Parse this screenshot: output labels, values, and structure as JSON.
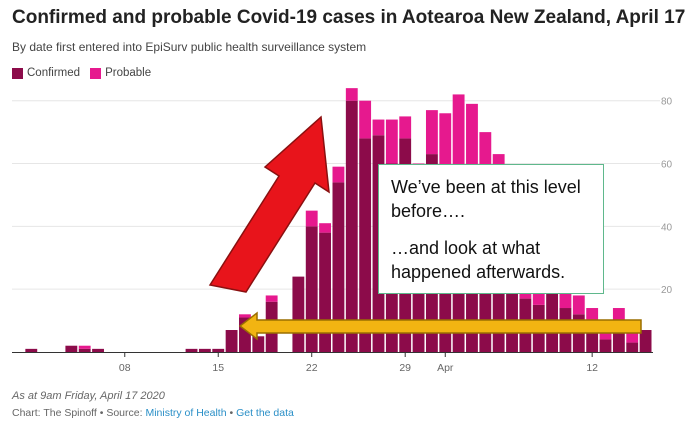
{
  "header": {
    "title": "Confirmed and probable Covid-19 cases in Aotearoa New Zealand, April 17",
    "subtitle": "By date first entered into EpiSurv public health surveillance system"
  },
  "legend": {
    "confirmed_label": "Confirmed",
    "probable_label": "Probable"
  },
  "colors": {
    "confirmed": "#8c0b4a",
    "probable": "#e6198e",
    "arrow_up": "#e8141b",
    "arrow_left": "#f2b412",
    "grid": "#e6e6e6",
    "axis_text": "#999999"
  },
  "chart_data": {
    "type": "bar",
    "stacked": true,
    "title": "Confirmed and probable Covid-19 cases in Aotearoa New Zealand, April 17",
    "subtitle": "By date first entered into EpiSurv public health surveillance system",
    "xlabel": "",
    "ylabel": "",
    "ylim": [
      0,
      85
    ],
    "y_ticks": [
      20,
      40,
      60,
      80
    ],
    "x_tick_labels": [
      {
        "label": "08",
        "index": 8
      },
      {
        "label": "15",
        "index": 15
      },
      {
        "label": "22",
        "index": 22
      },
      {
        "label": "29",
        "index": 29
      },
      {
        "label": "Apr",
        "index": 32
      },
      {
        "label": "12",
        "index": 43
      }
    ],
    "categories": [
      "Feb 29",
      "Mar 1",
      "Mar 2",
      "Mar 3",
      "Mar 4",
      "Mar 5",
      "Mar 6",
      "Mar 7",
      "Mar 8",
      "Mar 9",
      "Mar 10",
      "Mar 11",
      "Mar 12",
      "Mar 13",
      "Mar 14",
      "Mar 15",
      "Mar 16",
      "Mar 17",
      "Mar 18",
      "Mar 19",
      "Mar 20",
      "Mar 21",
      "Mar 22",
      "Mar 23",
      "Mar 24",
      "Mar 25",
      "Mar 26",
      "Mar 27",
      "Mar 28",
      "Mar 29",
      "Mar 30",
      "Mar 31",
      "Apr 1",
      "Apr 2",
      "Apr 3",
      "Apr 4",
      "Apr 5",
      "Apr 6",
      "Apr 7",
      "Apr 8",
      "Apr 9",
      "Apr 10",
      "Apr 11",
      "Apr 12",
      "Apr 13",
      "Apr 14",
      "Apr 15",
      "Apr 16"
    ],
    "series": [
      {
        "name": "Confirmed",
        "values": [
          0,
          1,
          0,
          0,
          2,
          1,
          1,
          0,
          0,
          0,
          0,
          0,
          0,
          1,
          1,
          1,
          7,
          11,
          5,
          16,
          0,
          24,
          40,
          38,
          54,
          80,
          68,
          69,
          60,
          68,
          54,
          63,
          55,
          54,
          59,
          44,
          35,
          30,
          17,
          15,
          19,
          14,
          12,
          9,
          4,
          9,
          3,
          7
        ]
      },
      {
        "name": "Probable",
        "values": [
          0,
          0,
          0,
          0,
          0,
          1,
          0,
          0,
          0,
          0,
          0,
          0,
          0,
          0,
          0,
          0,
          0,
          1,
          0,
          2,
          0,
          0,
          5,
          3,
          5,
          4,
          12,
          5,
          14,
          7,
          6,
          14,
          21,
          28,
          20,
          26,
          28,
          25,
          5,
          4,
          8,
          7,
          6,
          5,
          3,
          5,
          3,
          0
        ]
      }
    ],
    "annotations": [
      {
        "kind": "callout",
        "lines": [
          "We’ve been at this level before….",
          "…and look at what happened afterwards."
        ]
      },
      {
        "kind": "arrow",
        "direction": "up-right",
        "color": "#e8141b"
      },
      {
        "kind": "arrow",
        "direction": "left",
        "color": "#f2b412"
      }
    ]
  },
  "footer": {
    "timestamp": "As at 9am Friday, April 17 2020",
    "credit_prefix": "Chart: The Spinoff • Source: ",
    "source_link": "Ministry of Health",
    "separator": " • ",
    "data_link": "Get the data"
  }
}
